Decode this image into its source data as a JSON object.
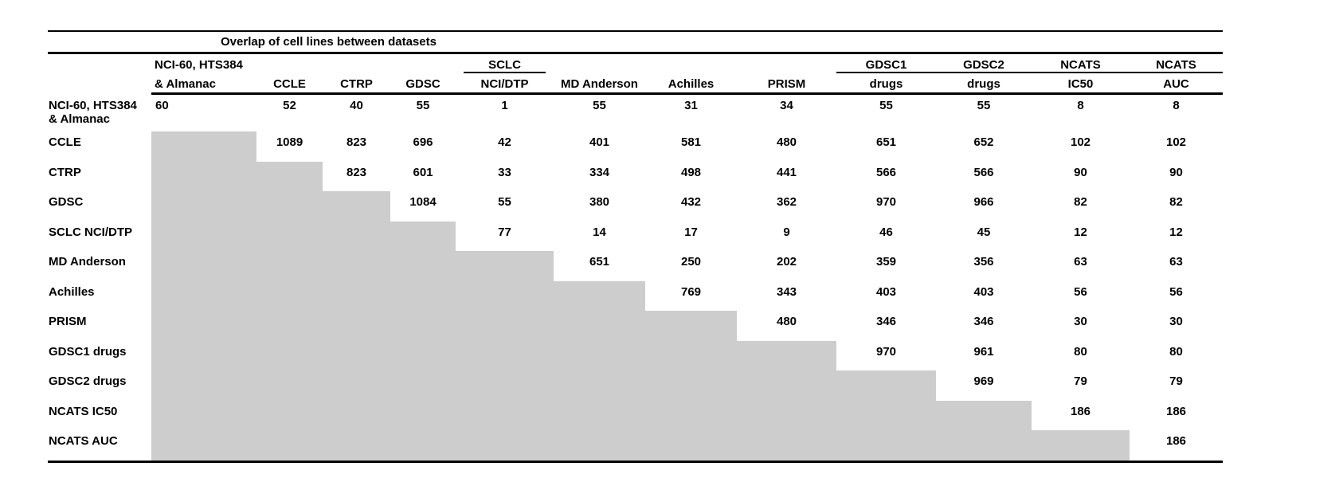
{
  "title": "Overlap of cell lines between datasets",
  "shaded_color": "#cdcdcd",
  "columns": [
    {
      "top": "NCI-60, HTS384",
      "bottom": "& Almanac",
      "underline": "none"
    },
    {
      "top": "",
      "bottom": "CCLE",
      "underline": "none"
    },
    {
      "top": "",
      "bottom": "CTRP",
      "underline": "none"
    },
    {
      "top": "",
      "bottom": "GDSC",
      "underline": "none"
    },
    {
      "top": "SCLC",
      "bottom": "NCI/DTP",
      "underline": "short"
    },
    {
      "top": "",
      "bottom": "MD Anderson",
      "underline": "none"
    },
    {
      "top": "",
      "bottom": "Achilles",
      "underline": "none"
    },
    {
      "top": "",
      "bottom": "PRISM",
      "underline": "none"
    },
    {
      "top": "GDSC1",
      "bottom": "drugs",
      "underline": "full"
    },
    {
      "top": "GDSC2",
      "bottom": "drugs",
      "underline": "full"
    },
    {
      "top": "NCATS",
      "bottom": "IC50",
      "underline": "full"
    },
    {
      "top": "NCATS",
      "bottom": "AUC",
      "underline": "full"
    }
  ],
  "rows": [
    {
      "label_lines": [
        "NCI-60, HTS384",
        "& Almanac"
      ],
      "values": [
        60,
        52,
        40,
        55,
        1,
        55,
        31,
        34,
        55,
        55,
        8,
        8
      ]
    },
    {
      "label_lines": [
        "CCLE"
      ],
      "values": [
        1089,
        823,
        696,
        42,
        401,
        581,
        480,
        651,
        652,
        102,
        102
      ]
    },
    {
      "label_lines": [
        "CTRP"
      ],
      "values": [
        823,
        601,
        33,
        334,
        498,
        441,
        566,
        566,
        90,
        90
      ]
    },
    {
      "label_lines": [
        "GDSC"
      ],
      "values": [
        1084,
        55,
        380,
        432,
        362,
        970,
        966,
        82,
        82
      ]
    },
    {
      "label_lines": [
        "SCLC NCI/DTP"
      ],
      "values": [
        77,
        14,
        17,
        9,
        46,
        45,
        12,
        12
      ]
    },
    {
      "label_lines": [
        "MD Anderson"
      ],
      "values": [
        651,
        250,
        202,
        359,
        356,
        63,
        63
      ]
    },
    {
      "label_lines": [
        "Achilles"
      ],
      "values": [
        769,
        343,
        403,
        403,
        56,
        56
      ]
    },
    {
      "label_lines": [
        "PRISM"
      ],
      "values": [
        480,
        346,
        346,
        30,
        30
      ]
    },
    {
      "label_lines": [
        "GDSC1 drugs"
      ],
      "values": [
        970,
        961,
        80,
        80
      ]
    },
    {
      "label_lines": [
        "GDSC2 drugs"
      ],
      "values": [
        969,
        79,
        79
      ]
    },
    {
      "label_lines": [
        "NCATS IC50"
      ],
      "values": [
        186,
        186
      ]
    },
    {
      "label_lines": [
        "NCATS AUC"
      ],
      "values": [
        186
      ]
    }
  ]
}
